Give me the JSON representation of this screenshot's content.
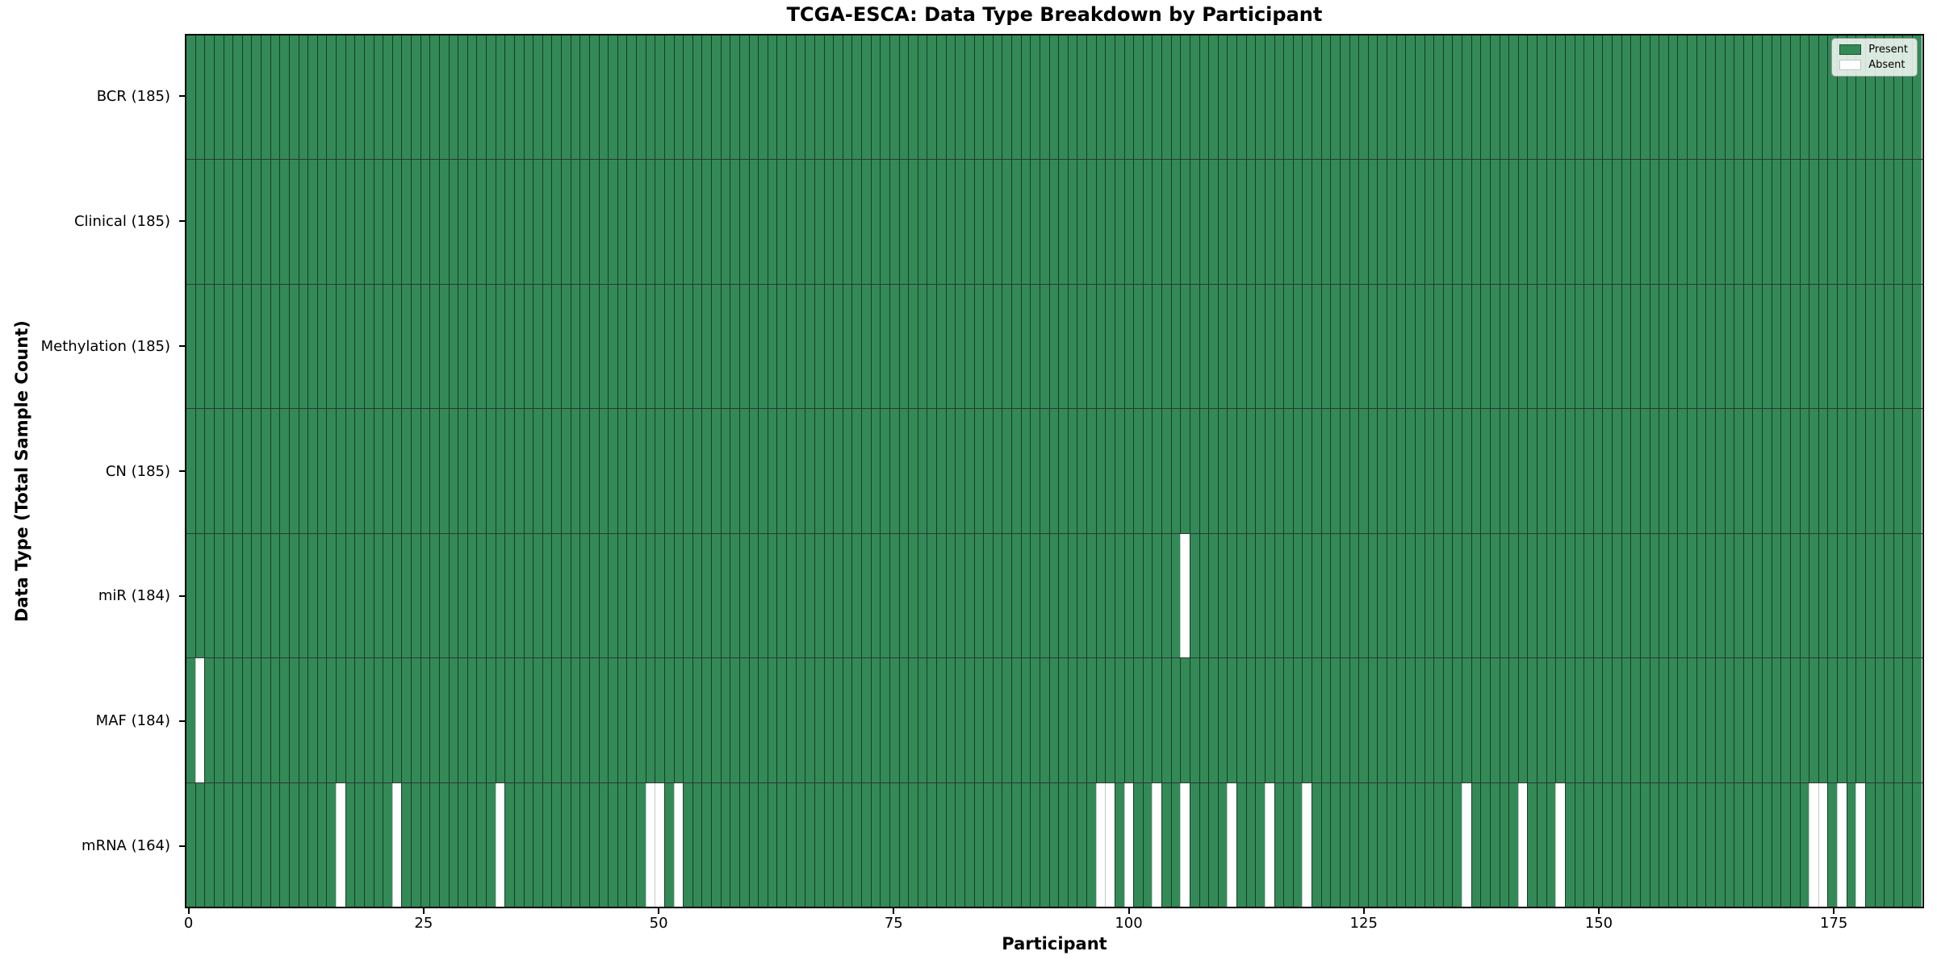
{
  "title": "TCGA-ESCA: Data Type Breakdown by Participant",
  "chart_data": {
    "type": "heatmap",
    "title": "TCGA-ESCA: Data Type Breakdown by Participant",
    "xlabel": "Participant",
    "ylabel": "Data Type (Total Sample Count)",
    "n_participants": 185,
    "x_ticks": [
      0,
      25,
      50,
      75,
      100,
      125,
      150,
      175
    ],
    "grid": false,
    "legend_position": "upper right",
    "legend": [
      {
        "label": "Present",
        "color": "#338a57"
      },
      {
        "label": "Absent",
        "color": "#ffffff"
      }
    ],
    "colors": {
      "present": "#338a57",
      "absent": "#ffffff",
      "edge": "#102619"
    },
    "rows": [
      {
        "label": "BCR (185)",
        "data_type": "BCR",
        "present_count": 185,
        "absent_participants": []
      },
      {
        "label": "Clinical (185)",
        "data_type": "Clinical",
        "present_count": 185,
        "absent_participants": []
      },
      {
        "label": "Methylation (185)",
        "data_type": "Methylation",
        "present_count": 185,
        "absent_participants": []
      },
      {
        "label": "CN (185)",
        "data_type": "CN",
        "present_count": 185,
        "absent_participants": []
      },
      {
        "label": "miR (184)",
        "data_type": "miR",
        "present_count": 184,
        "absent_participants": [
          106
        ]
      },
      {
        "label": "MAF (184)",
        "data_type": "MAF",
        "present_count": 184,
        "absent_participants": [
          1
        ]
      },
      {
        "label": "mRNA (164)",
        "data_type": "mRNA",
        "present_count": 164,
        "absent_participants": [
          16,
          22,
          33,
          49,
          50,
          52,
          97,
          98,
          100,
          103,
          106,
          111,
          115,
          119,
          136,
          142,
          146,
          173,
          174,
          176,
          178
        ]
      }
    ]
  }
}
